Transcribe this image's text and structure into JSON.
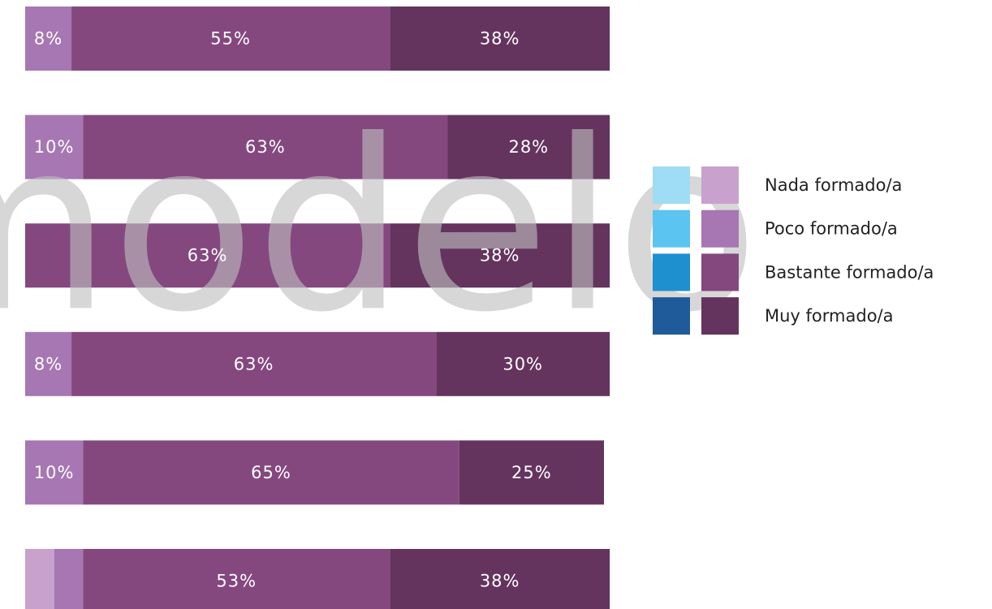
{
  "chart_data": {
    "type": "stacked_bar_horizontal",
    "watermark": "modelo",
    "categories": [
      null,
      null,
      null,
      null,
      null,
      null
    ],
    "xlim": [
      0,
      100
    ],
    "series": [
      {
        "name": "Nada formado/a",
        "color": "#c8a2cc",
        "alt_color": "#9fdcf5",
        "values": [
          0,
          0,
          0,
          0,
          0,
          5
        ],
        "value_labels": [
          null,
          null,
          null,
          null,
          null,
          null
        ]
      },
      {
        "name": "Poco formado/a",
        "color": "#a677b3",
        "alt_color": "#5bc4f0",
        "values": [
          8,
          10,
          0,
          8,
          10,
          5
        ],
        "value_labels": [
          "8%",
          "10%",
          null,
          "8%",
          "10%",
          null
        ]
      },
      {
        "name": "Bastante formado/a",
        "color": "#84487f",
        "alt_color": "#1e90d0",
        "values": [
          55,
          63,
          63,
          63,
          65,
          53
        ],
        "value_labels": [
          "55%",
          "63%",
          "63%",
          "63%",
          "65%",
          "53%"
        ]
      },
      {
        "name": "Muy formado/a",
        "color": "#64345f",
        "alt_color": "#1f5b9a",
        "values": [
          38,
          28,
          38,
          30,
          25,
          38
        ],
        "value_labels": [
          "38%",
          "28%",
          "38%",
          "30%",
          "25%",
          "38%"
        ]
      }
    ],
    "legend": "right"
  }
}
